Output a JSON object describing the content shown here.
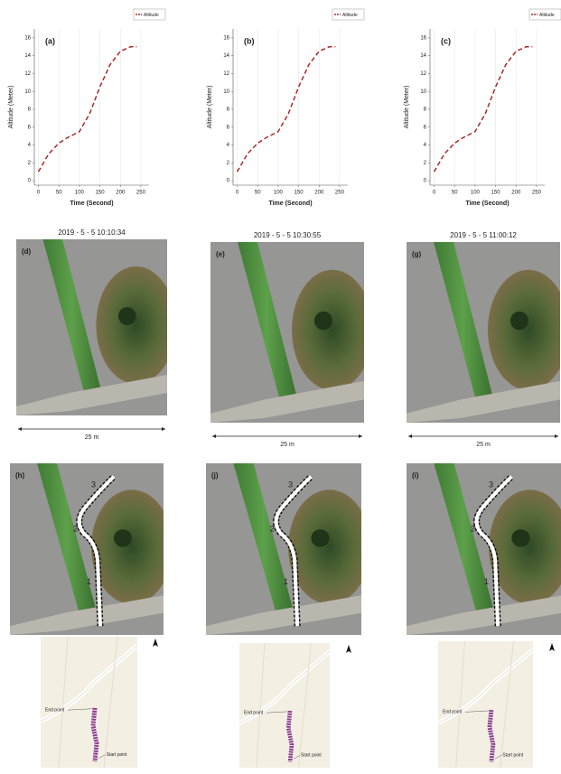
{
  "chart_data": [
    {
      "type": "line",
      "panel": "(a)",
      "x_label": "Time (Second)",
      "y_label": "Altitude (Meter)",
      "x": [
        0,
        25,
        50,
        70,
        100,
        125,
        150,
        175,
        200,
        225,
        240
      ],
      "series": [
        {
          "name": "Altitude",
          "color": "#a52a2a",
          "values": [
            1,
            3,
            4.2,
            4.8,
            5.5,
            7.5,
            10.5,
            13,
            14.5,
            15,
            15
          ]
        }
      ],
      "xlim": [
        -10,
        270
      ],
      "ylim": [
        -0.5,
        17
      ],
      "xticks": [
        0,
        50,
        100,
        150,
        200,
        250
      ],
      "yticks": [
        0,
        2,
        4,
        6,
        8,
        10,
        12,
        14,
        16
      ],
      "grid": true,
      "legend": "top-right"
    },
    {
      "type": "line",
      "panel": "(b)",
      "x_label": "Time (Second)",
      "y_label": "Altitude (Meter)",
      "x": [
        0,
        25,
        50,
        70,
        100,
        125,
        150,
        175,
        200,
        225,
        240
      ],
      "series": [
        {
          "name": "Altitude",
          "color": "#a52a2a",
          "values": [
            1,
            3,
            4.2,
            4.8,
            5.5,
            7.5,
            10.5,
            13,
            14.5,
            15,
            15
          ]
        }
      ],
      "xlim": [
        -10,
        270
      ],
      "ylim": [
        -0.5,
        17
      ],
      "xticks": [
        0,
        50,
        100,
        150,
        200,
        250
      ],
      "yticks": [
        0,
        2,
        4,
        6,
        8,
        10,
        12,
        14,
        16
      ],
      "grid": true,
      "legend": "top-right"
    },
    {
      "type": "line",
      "panel": "(c)",
      "x_label": "Time (Second)",
      "y_label": "Altitude (Meter)",
      "x": [
        0,
        25,
        50,
        70,
        100,
        125,
        150,
        175,
        200,
        225,
        240
      ],
      "series": [
        {
          "name": "Altitude",
          "color": "#a52a2a",
          "values": [
            1,
            3,
            4.2,
            4.8,
            5.5,
            7.5,
            10.5,
            13,
            14.5,
            15,
            15
          ]
        }
      ],
      "xlim": [
        -10,
        270
      ],
      "ylim": [
        -0.5,
        17
      ],
      "xticks": [
        0,
        50,
        100,
        150,
        200,
        250
      ],
      "yticks": [
        0,
        2,
        4,
        6,
        8,
        10,
        12,
        14,
        16
      ],
      "grid": true,
      "legend": "top-right"
    }
  ],
  "photos": [
    {
      "date": "2019 - 5 - 5   10:10:34",
      "label": "(d)",
      "scale": "25 m"
    },
    {
      "date": "2019 - 5 - 5   10:30:55",
      "label": "(e)",
      "scale": "25 m"
    },
    {
      "date": "2019 - 5 - 5   11:00:12",
      "label": "(g)",
      "scale": "25 m"
    }
  ],
  "tracks": [
    {
      "label": "(h)",
      "segments": [
        "1",
        "2",
        "3"
      ]
    },
    {
      "label": "(j)",
      "segments": [
        "1",
        "2",
        "3"
      ]
    },
    {
      "label": "(i)",
      "segments": [
        "1",
        "2",
        "3"
      ]
    }
  ],
  "maps": [
    {
      "end": "End point",
      "start": "Start point"
    },
    {
      "end": "End point",
      "start": "Start point"
    },
    {
      "end": "End point",
      "start": "Start point"
    }
  ]
}
